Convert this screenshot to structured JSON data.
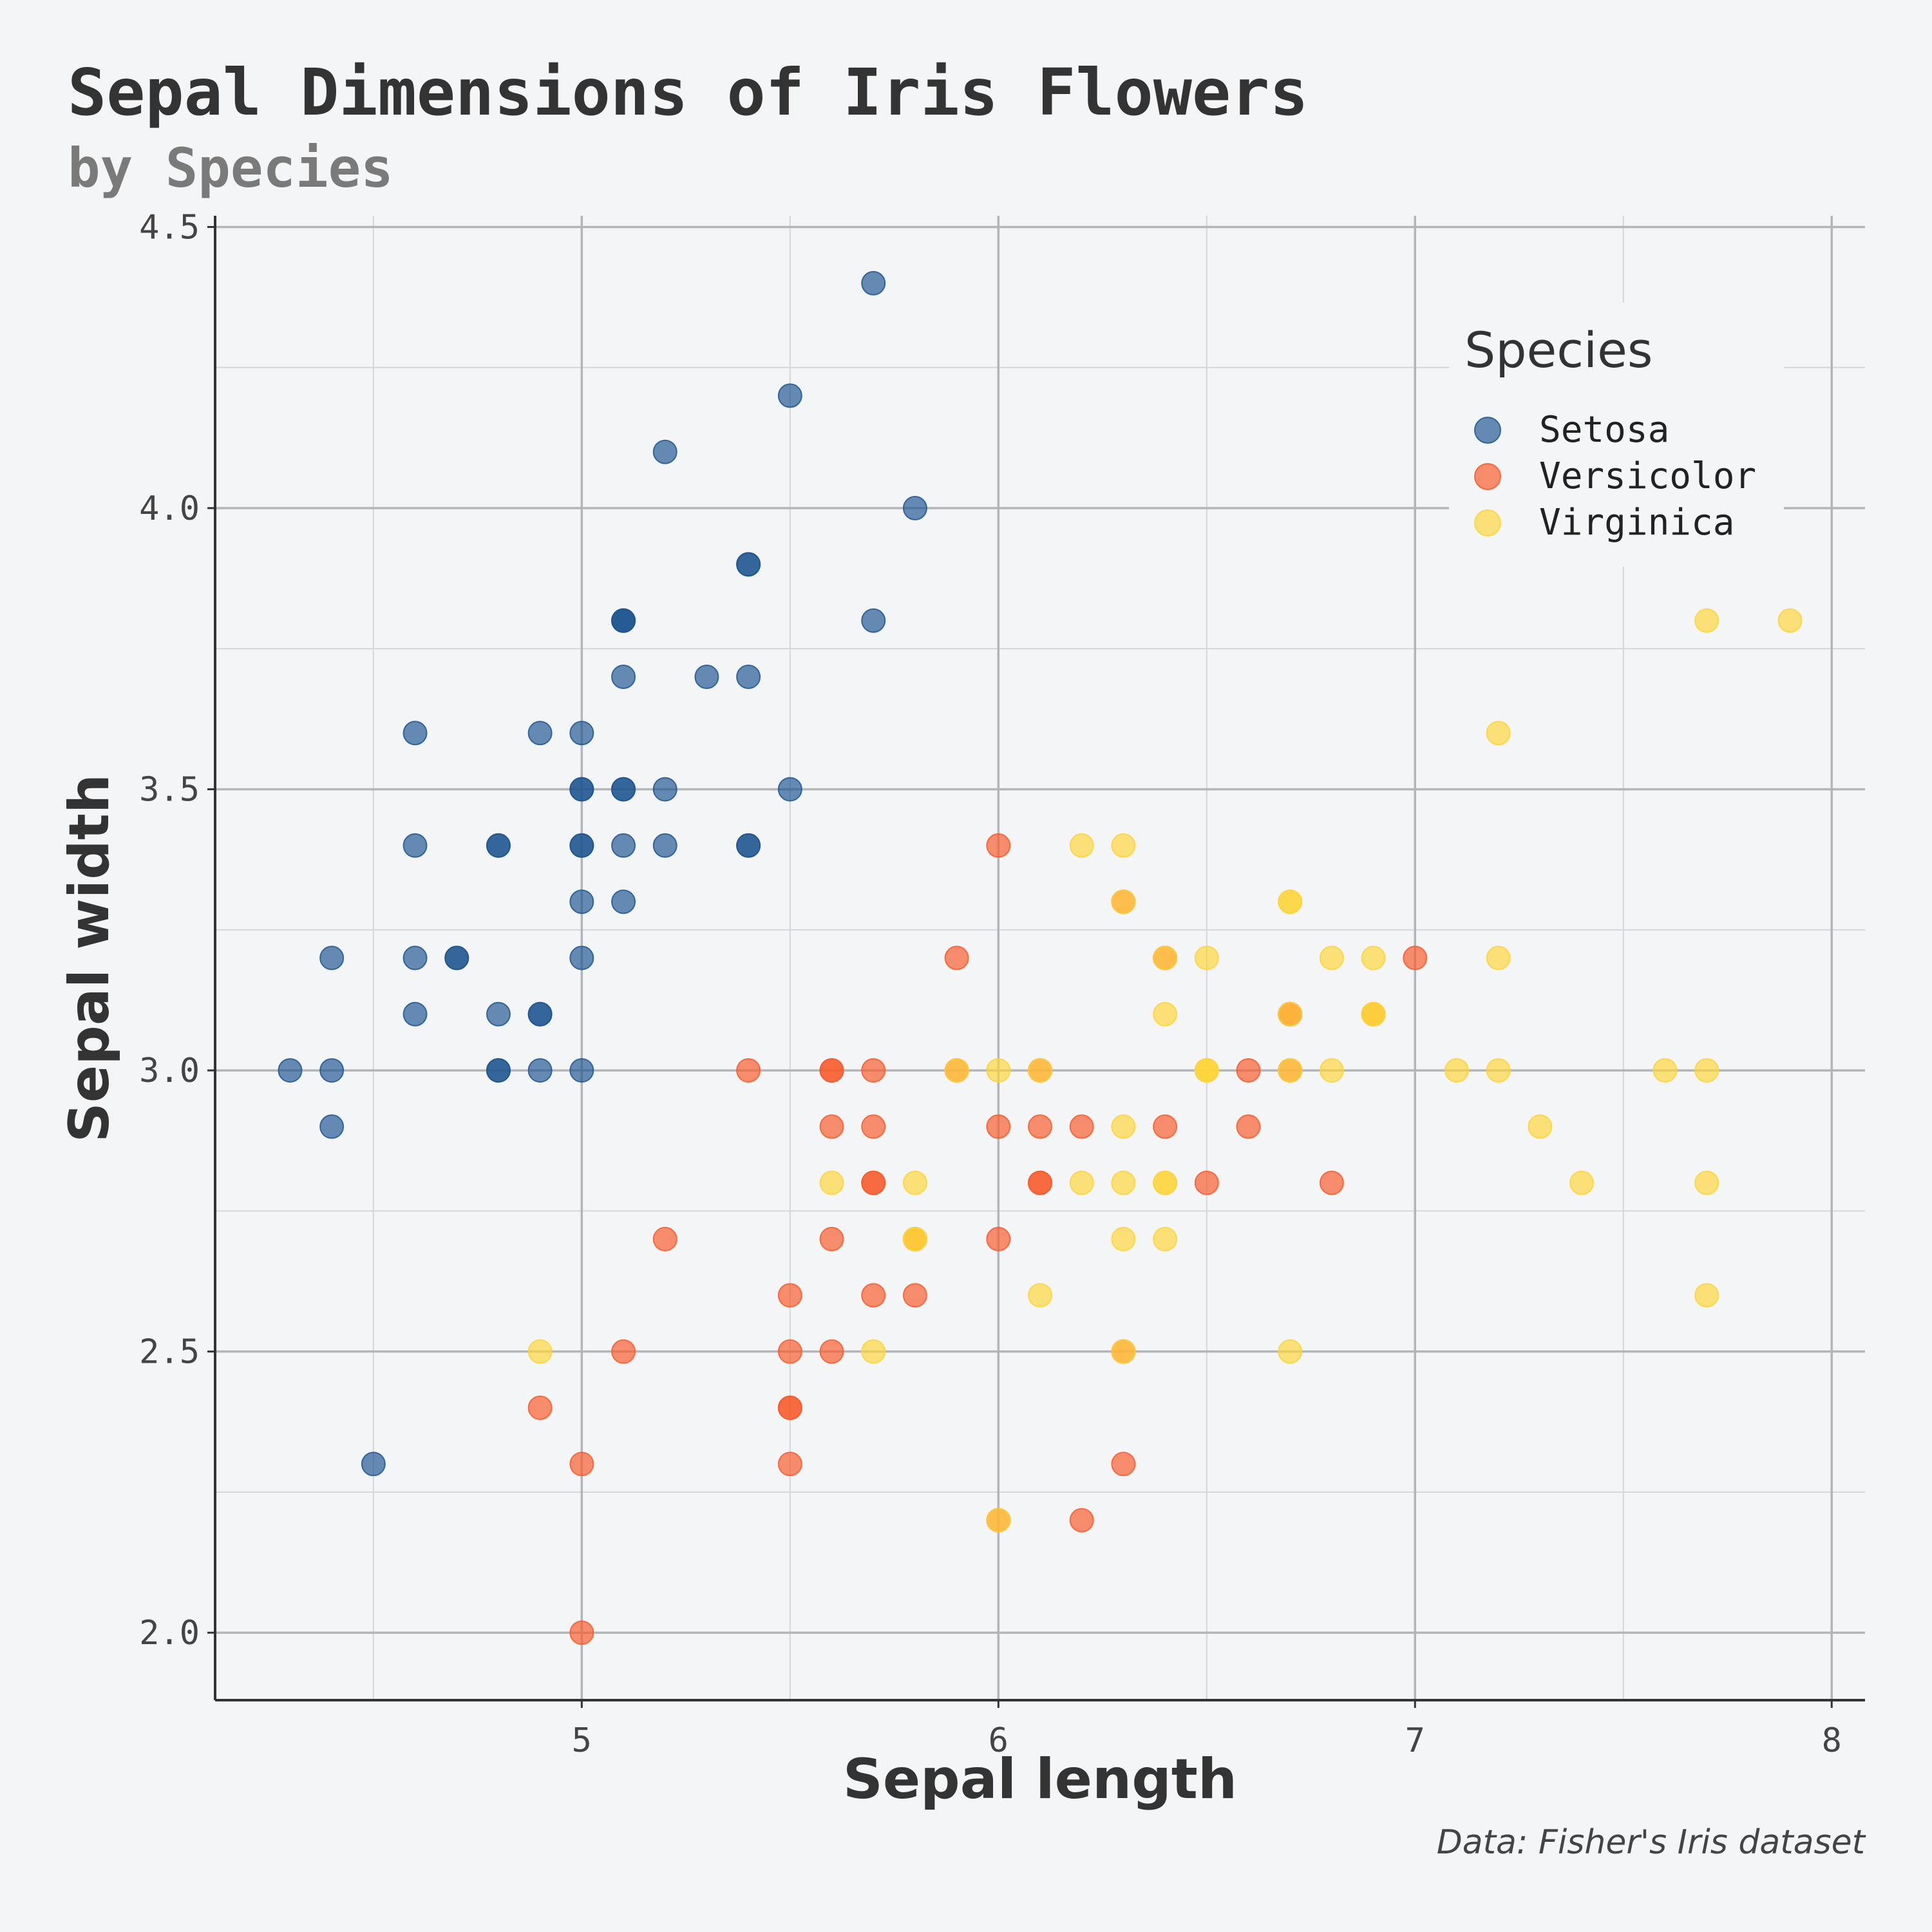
{
  "chart_data": {
    "type": "scatter",
    "title": "Sepal Dimensions of Iris Flowers",
    "subtitle": "by Species",
    "xlabel": "Sepal length",
    "ylabel": "Sepal width",
    "source": "Data: Fisher's Iris dataset",
    "xlim": [
      4.12,
      8.08
    ],
    "ylim": [
      1.88,
      4.52
    ],
    "xticks": [
      5,
      6,
      7,
      8
    ],
    "xtick_labels": [
      "5",
      "6",
      "7",
      "8"
    ],
    "yticks": [
      2.0,
      2.5,
      3.0,
      3.5,
      4.0,
      4.5
    ],
    "ytick_labels": [
      "2.0",
      "2.5",
      "3.0",
      "3.5",
      "4.0",
      "4.5"
    ],
    "grid": true,
    "legend": {
      "title": "Species",
      "position": "top-right"
    },
    "series": [
      {
        "name": "Setosa",
        "color": "#1f5591",
        "points": [
          [
            5.1,
            3.5
          ],
          [
            4.9,
            3.0
          ],
          [
            4.7,
            3.2
          ],
          [
            4.6,
            3.1
          ],
          [
            5.0,
            3.6
          ],
          [
            5.4,
            3.9
          ],
          [
            4.6,
            3.4
          ],
          [
            5.0,
            3.4
          ],
          [
            4.4,
            2.9
          ],
          [
            4.9,
            3.1
          ],
          [
            5.4,
            3.7
          ],
          [
            4.8,
            3.4
          ],
          [
            4.8,
            3.0
          ],
          [
            4.3,
            3.0
          ],
          [
            5.8,
            4.0
          ],
          [
            5.7,
            4.4
          ],
          [
            5.4,
            3.9
          ],
          [
            5.1,
            3.5
          ],
          [
            5.7,
            3.8
          ],
          [
            5.1,
            3.8
          ],
          [
            5.4,
            3.4
          ],
          [
            5.1,
            3.7
          ],
          [
            4.6,
            3.6
          ],
          [
            5.1,
            3.3
          ],
          [
            4.8,
            3.4
          ],
          [
            5.0,
            3.0
          ],
          [
            5.0,
            3.4
          ],
          [
            5.2,
            3.5
          ],
          [
            5.2,
            3.4
          ],
          [
            4.7,
            3.2
          ],
          [
            4.8,
            3.1
          ],
          [
            5.4,
            3.4
          ],
          [
            5.2,
            4.1
          ],
          [
            5.5,
            4.2
          ],
          [
            4.9,
            3.1
          ],
          [
            5.0,
            3.2
          ],
          [
            5.5,
            3.5
          ],
          [
            4.9,
            3.6
          ],
          [
            4.4,
            3.0
          ],
          [
            5.1,
            3.4
          ],
          [
            5.0,
            3.5
          ],
          [
            4.5,
            2.3
          ],
          [
            4.4,
            3.2
          ],
          [
            5.0,
            3.5
          ],
          [
            5.1,
            3.8
          ],
          [
            4.8,
            3.0
          ],
          [
            5.1,
            3.8
          ],
          [
            4.6,
            3.2
          ],
          [
            5.3,
            3.7
          ],
          [
            5.0,
            3.3
          ]
        ]
      },
      {
        "name": "Versicolor",
        "color": "#f75a2b",
        "points": [
          [
            7.0,
            3.2
          ],
          [
            6.4,
            3.2
          ],
          [
            6.9,
            3.1
          ],
          [
            5.5,
            2.3
          ],
          [
            6.5,
            2.8
          ],
          [
            5.7,
            2.8
          ],
          [
            6.3,
            3.3
          ],
          [
            4.9,
            2.4
          ],
          [
            6.6,
            2.9
          ],
          [
            5.2,
            2.7
          ],
          [
            5.0,
            2.0
          ],
          [
            5.9,
            3.0
          ],
          [
            6.0,
            2.2
          ],
          [
            6.1,
            2.9
          ],
          [
            5.6,
            2.9
          ],
          [
            6.7,
            3.1
          ],
          [
            5.6,
            3.0
          ],
          [
            5.8,
            2.7
          ],
          [
            6.2,
            2.2
          ],
          [
            5.6,
            2.5
          ],
          [
            5.9,
            3.2
          ],
          [
            6.1,
            2.8
          ],
          [
            6.3,
            2.5
          ],
          [
            6.1,
            2.8
          ],
          [
            6.4,
            2.9
          ],
          [
            6.6,
            3.0
          ],
          [
            6.8,
            2.8
          ],
          [
            6.7,
            3.0
          ],
          [
            6.0,
            2.9
          ],
          [
            5.7,
            2.6
          ],
          [
            5.5,
            2.4
          ],
          [
            5.5,
            2.4
          ],
          [
            5.8,
            2.7
          ],
          [
            6.0,
            2.7
          ],
          [
            5.4,
            3.0
          ],
          [
            6.0,
            3.4
          ],
          [
            6.7,
            3.1
          ],
          [
            6.3,
            2.3
          ],
          [
            5.6,
            3.0
          ],
          [
            5.5,
            2.5
          ],
          [
            5.5,
            2.6
          ],
          [
            6.1,
            3.0
          ],
          [
            5.8,
            2.6
          ],
          [
            5.0,
            2.3
          ],
          [
            5.6,
            2.7
          ],
          [
            5.7,
            3.0
          ],
          [
            5.7,
            2.9
          ],
          [
            6.2,
            2.9
          ],
          [
            5.1,
            2.5
          ],
          [
            5.7,
            2.8
          ]
        ]
      },
      {
        "name": "Virginica",
        "color": "#fdd43a",
        "points": [
          [
            6.3,
            3.3
          ],
          [
            5.8,
            2.7
          ],
          [
            7.1,
            3.0
          ],
          [
            6.3,
            2.9
          ],
          [
            6.5,
            3.0
          ],
          [
            7.6,
            3.0
          ],
          [
            4.9,
            2.5
          ],
          [
            7.3,
            2.9
          ],
          [
            6.7,
            2.5
          ],
          [
            7.2,
            3.6
          ],
          [
            6.5,
            3.2
          ],
          [
            6.4,
            2.7
          ],
          [
            6.8,
            3.0
          ],
          [
            5.7,
            2.5
          ],
          [
            5.8,
            2.8
          ],
          [
            6.4,
            3.2
          ],
          [
            6.5,
            3.0
          ],
          [
            7.7,
            3.8
          ],
          [
            7.7,
            2.6
          ],
          [
            6.0,
            2.2
          ],
          [
            6.9,
            3.2
          ],
          [
            5.6,
            2.8
          ],
          [
            7.7,
            2.8
          ],
          [
            6.3,
            2.7
          ],
          [
            6.7,
            3.3
          ],
          [
            7.2,
            3.2
          ],
          [
            6.2,
            2.8
          ],
          [
            6.1,
            3.0
          ],
          [
            6.4,
            2.8
          ],
          [
            7.2,
            3.0
          ],
          [
            7.4,
            2.8
          ],
          [
            7.9,
            3.8
          ],
          [
            6.4,
            2.8
          ],
          [
            6.3,
            2.8
          ],
          [
            6.1,
            2.6
          ],
          [
            7.7,
            3.0
          ],
          [
            6.3,
            3.4
          ],
          [
            6.4,
            3.1
          ],
          [
            6.0,
            3.0
          ],
          [
            6.9,
            3.1
          ],
          [
            6.7,
            3.1
          ],
          [
            6.9,
            3.1
          ],
          [
            5.8,
            2.7
          ],
          [
            6.8,
            3.2
          ],
          [
            6.7,
            3.3
          ],
          [
            6.7,
            3.0
          ],
          [
            6.3,
            2.5
          ],
          [
            6.5,
            3.0
          ],
          [
            6.2,
            3.4
          ],
          [
            5.9,
            3.0
          ]
        ]
      }
    ]
  }
}
